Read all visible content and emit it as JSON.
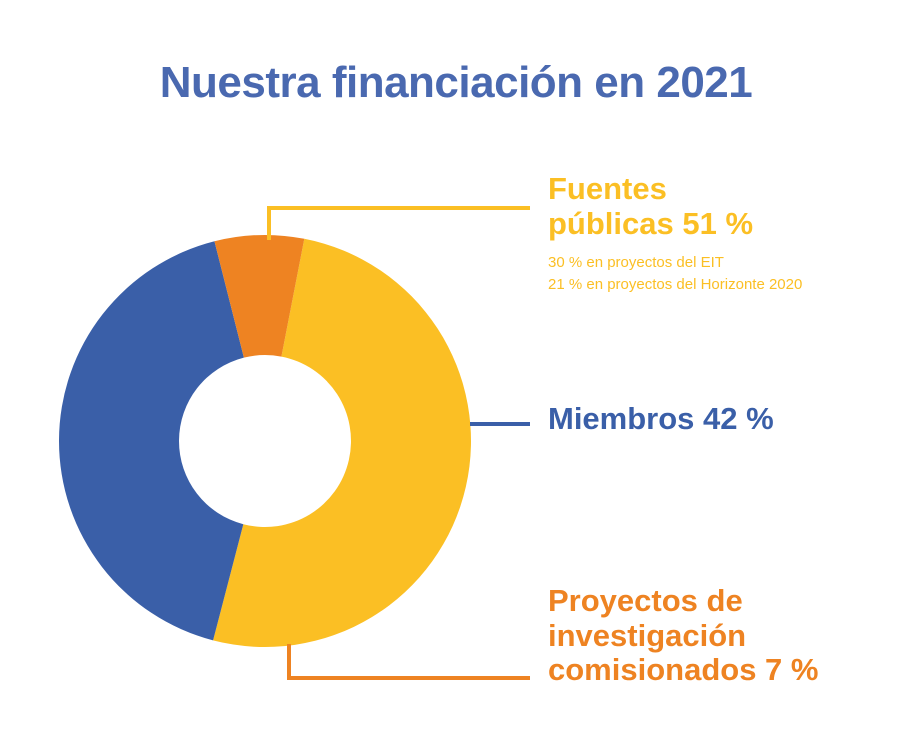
{
  "title": "Nuestra financiación en 2021",
  "colors": {
    "title": "#4A69B0",
    "yellow": "#FBBF24",
    "blue": "#3A5FA8",
    "orange": "#EE8322"
  },
  "chart_data": {
    "type": "pie",
    "title": "Nuestra financiación en 2021",
    "slices": [
      {
        "label": "Fuentes públicas",
        "value": 51,
        "display": [
          "Fuentes",
          "públicas 51 %"
        ],
        "details": [
          "30 % en proyectos del EIT",
          "21 % en proyectos del Horizonte 2020"
        ],
        "color": "#FBBF24"
      },
      {
        "label": "Miembros",
        "value": 42,
        "display": [
          "Miembros 42 %"
        ],
        "color": "#3A5FA8"
      },
      {
        "label": "Proyectos de investigación comisionados",
        "value": 7,
        "display": [
          "Proyectos de",
          "investigación",
          "comisionados 7 %"
        ],
        "color": "#EE8322"
      }
    ]
  }
}
